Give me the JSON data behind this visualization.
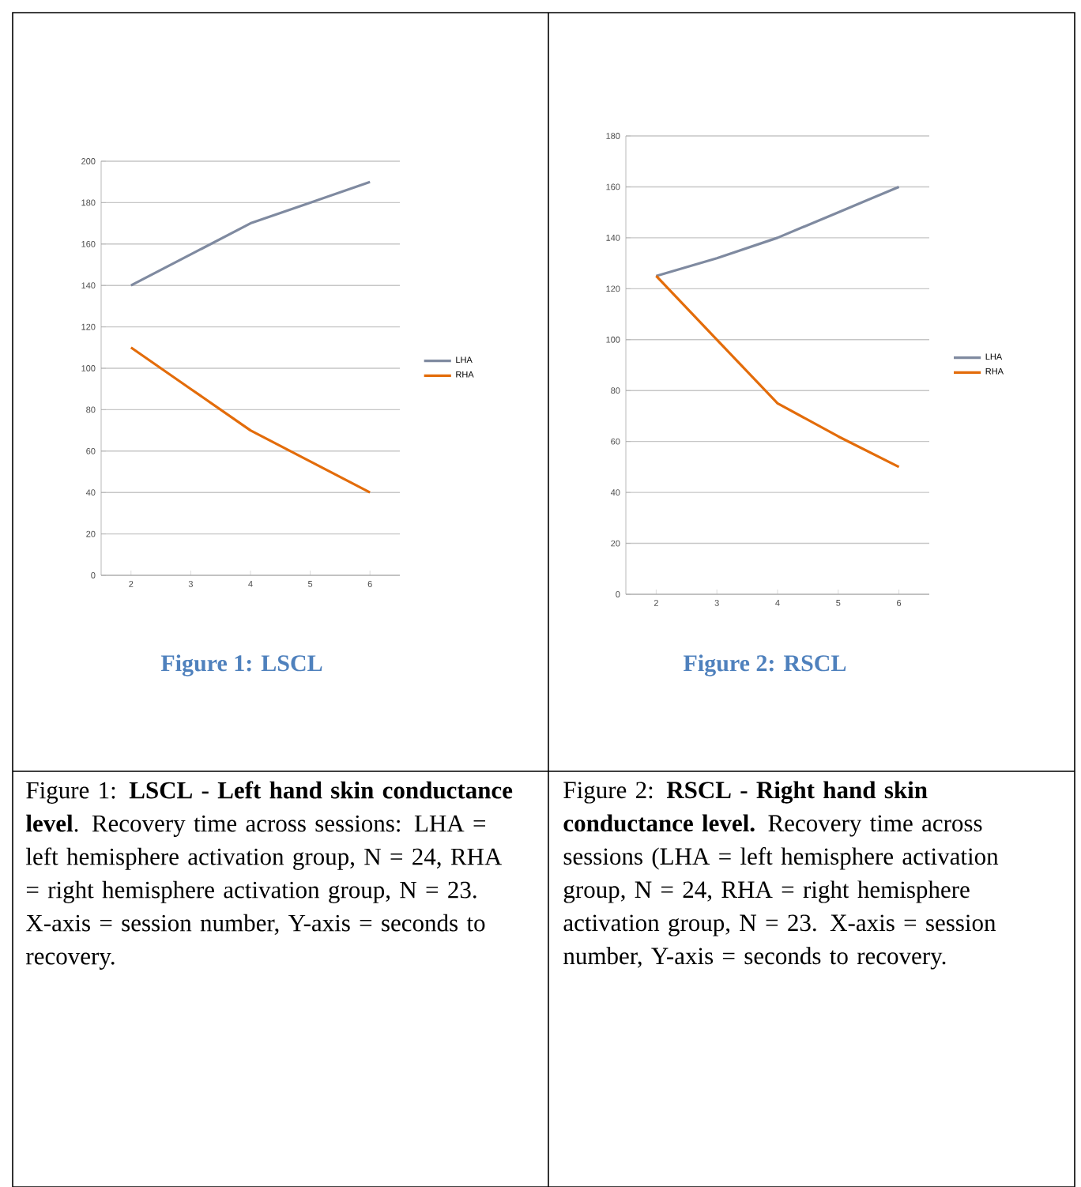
{
  "chart_data": [
    {
      "type": "line",
      "title": "Figure 1: LSCL",
      "categories": [
        "2",
        "3",
        "4",
        "5",
        "6"
      ],
      "ylim": [
        0,
        200
      ],
      "yticks": [
        0,
        20,
        40,
        60,
        80,
        100,
        120,
        140,
        160,
        180,
        200
      ],
      "grid": "y",
      "legend": "right",
      "marker": "none",
      "series": [
        {
          "name": "LHA",
          "color": "#7f8aa0",
          "values": [
            140,
            155,
            170,
            180,
            190
          ]
        },
        {
          "name": "RHA",
          "color": "#e36c0a",
          "values": [
            110,
            90,
            70,
            55,
            40
          ]
        }
      ],
      "annotations": [
        "Figure 1: **LSCL - Left hand skin conductance level**. Recovery time across sessions: LHA = left hemisphere activation group, N = 24, RHA = right hemisphere activation group, N = 23.  X-axis = session number, Y-axis = seconds to recovery."
      ]
    },
    {
      "type": "line",
      "title": "Figure 2:  RSCL",
      "categories": [
        "2",
        "3",
        "4",
        "5",
        "6"
      ],
      "ylim": [
        0,
        180
      ],
      "yticks": [
        0,
        20,
        40,
        60,
        80,
        100,
        120,
        140,
        160,
        180
      ],
      "grid": "y",
      "legend": "right",
      "marker": "none",
      "series": [
        {
          "name": "LHA",
          "color": "#7f8aa0",
          "values": [
            125,
            132,
            140,
            150,
            160
          ]
        },
        {
          "name": "RHA",
          "color": "#e36c0a",
          "values": [
            125,
            100,
            75,
            62,
            50
          ]
        }
      ],
      "annotations": [
        "Figure 2: **RSCL - Right hand skin conductance level.** Recovery time across sessions (LHA = left hemisphere activation group, N = 24, RHA = right hemisphere activation group, N = 23.  X-axis = session number, Y-axis = seconds to recovery."
      ]
    }
  ]
}
